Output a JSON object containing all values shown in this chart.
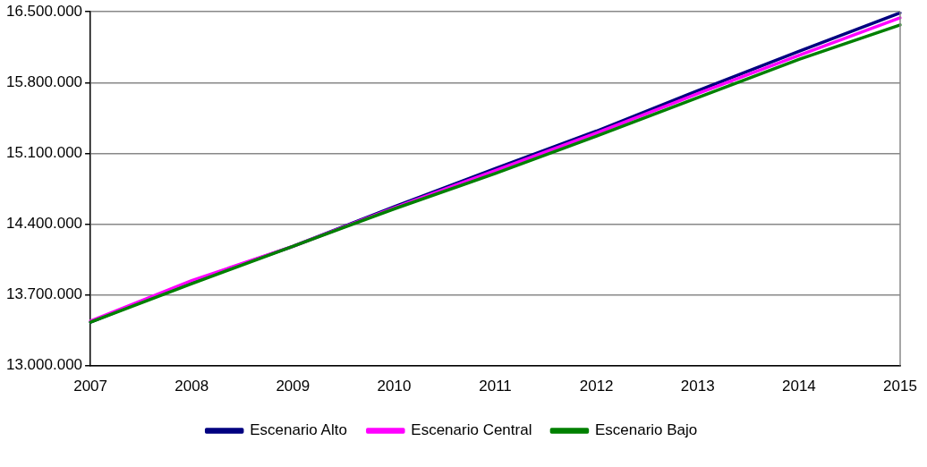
{
  "chart_data": {
    "type": "line",
    "categories": [
      "2007",
      "2008",
      "2009",
      "2010",
      "2011",
      "2012",
      "2013",
      "2014",
      "2015"
    ],
    "series": [
      {
        "name": "Escenario Alto",
        "color": "#000080",
        "values": [
          13430000,
          13830000,
          14180000,
          14570000,
          14950000,
          15320000,
          15720000,
          16110000,
          16490000
        ]
      },
      {
        "name": "Escenario Central",
        "color": "#ff00ff",
        "values": [
          13440000,
          13840000,
          14180000,
          14560000,
          14930000,
          15300000,
          15690000,
          16070000,
          16440000
        ]
      },
      {
        "name": "Escenario Bajo",
        "color": "#008000",
        "values": [
          13430000,
          13810000,
          14180000,
          14550000,
          14900000,
          15270000,
          15650000,
          16030000,
          16370000
        ]
      }
    ],
    "ylim": [
      13000000,
      16500000
    ],
    "yticks": [
      {
        "value": 13000000,
        "label": "13.000.000"
      },
      {
        "value": 13700000,
        "label": "13.700.000"
      },
      {
        "value": 14400000,
        "label": "14.400.000"
      },
      {
        "value": 15100000,
        "label": "15.100.000"
      },
      {
        "value": 15800000,
        "label": "15.800.000"
      },
      {
        "value": 16500000,
        "label": "16.500.000"
      }
    ],
    "grid": "y",
    "legend": "bottom",
    "marker": "none",
    "line_style": "solid"
  }
}
